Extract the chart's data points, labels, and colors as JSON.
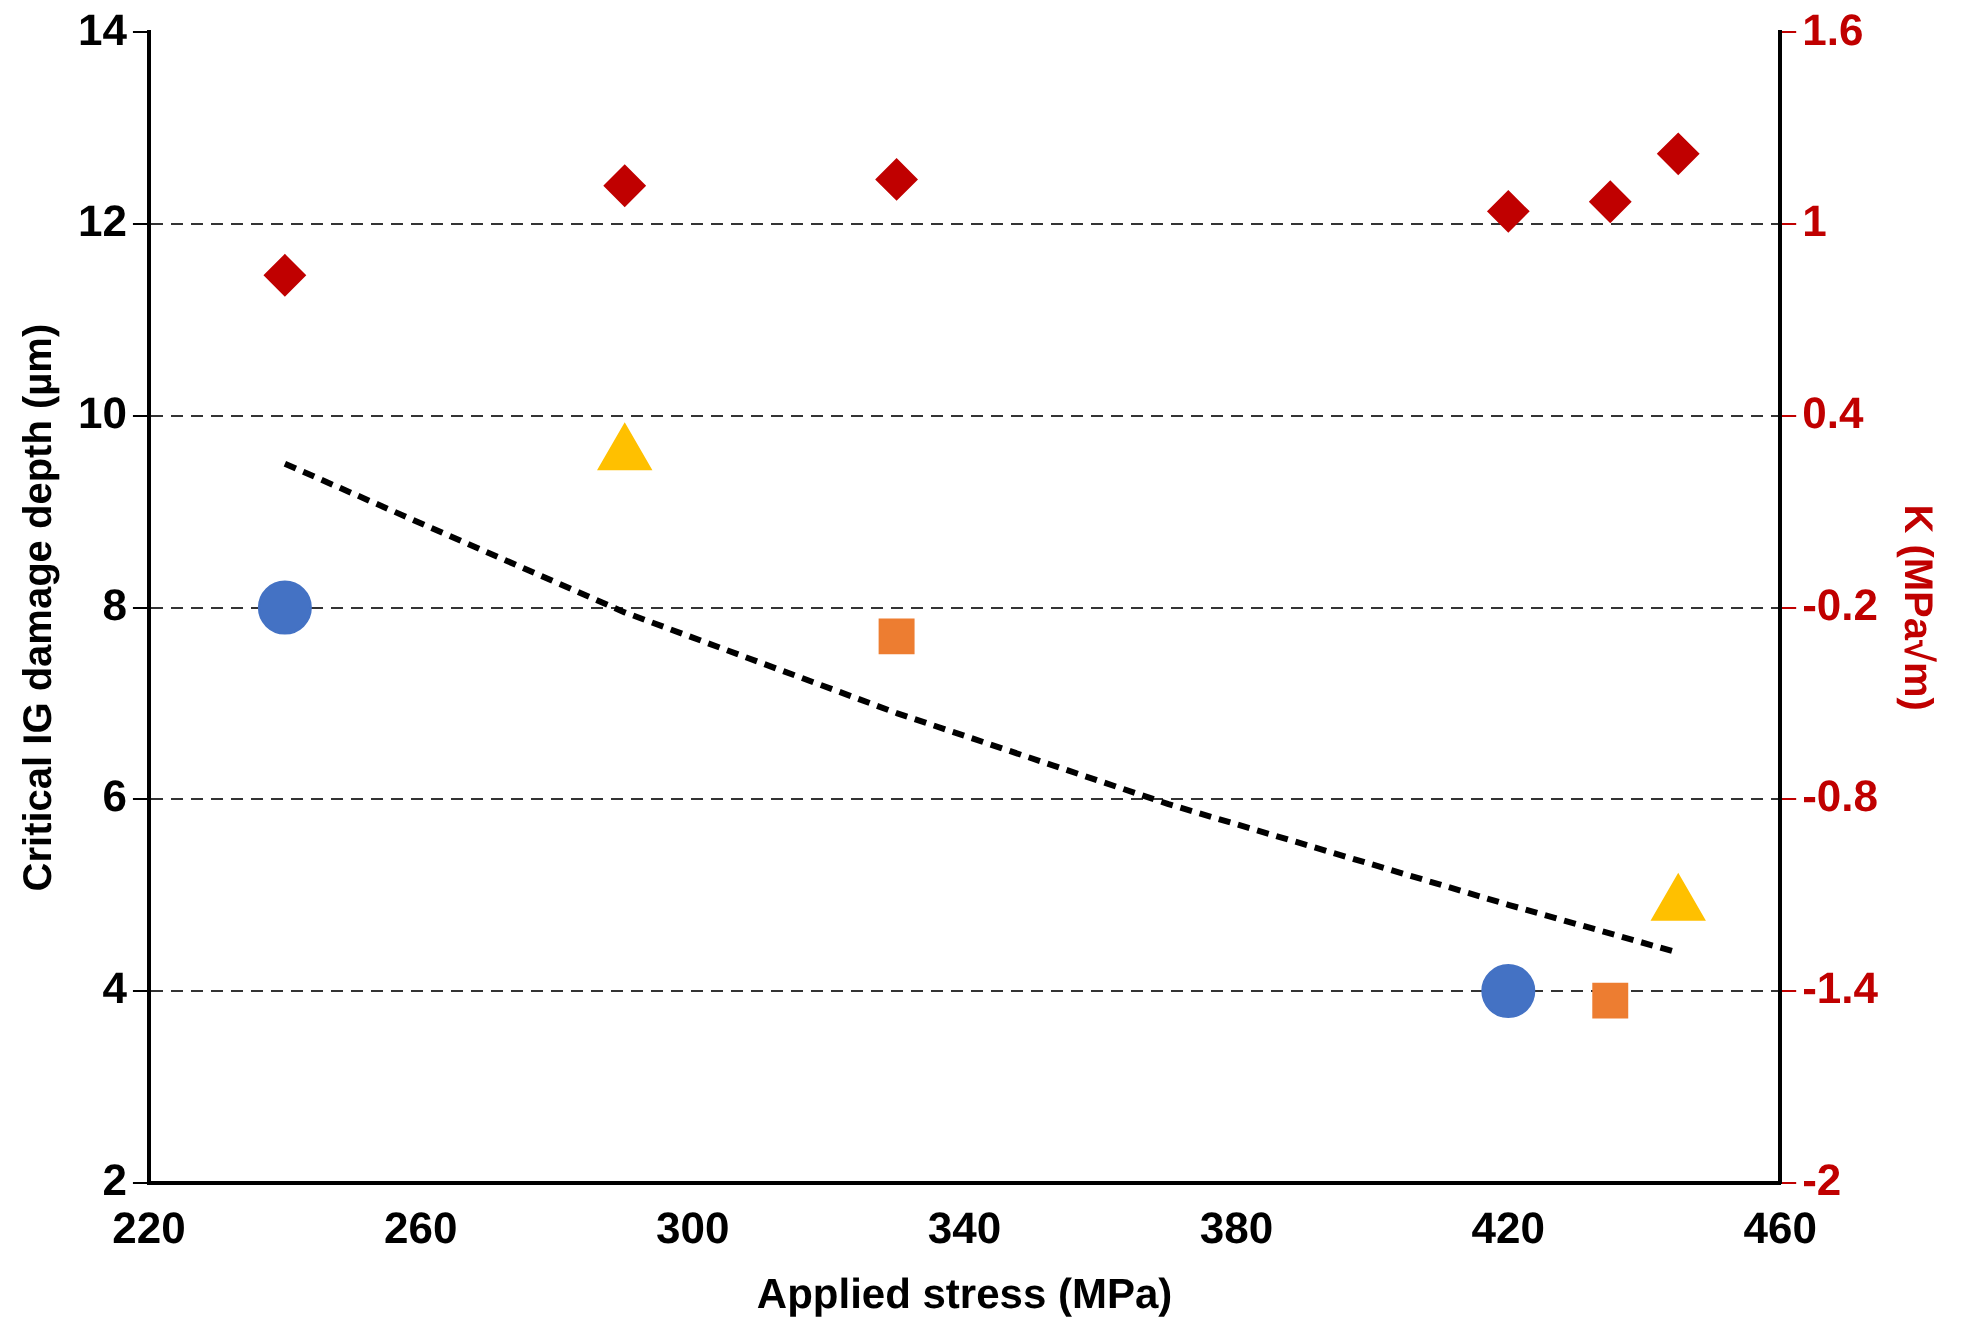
{
  "chart_data": {
    "type": "scatter",
    "xlabel": "Applied stress (MPa)",
    "ylabel": "Critical IG damage depth (µm)",
    "y2label": "K (MPa√m)",
    "xlim": [
      220,
      460
    ],
    "xticks": [
      220,
      260,
      300,
      340,
      380,
      420,
      460
    ],
    "ylim": [
      2,
      14
    ],
    "yticks": [
      2,
      4,
      6,
      8,
      10,
      12,
      14
    ],
    "y2lim": [
      -2,
      1.6
    ],
    "y2ticks": [
      -2,
      -1.4,
      -0.8,
      -0.2,
      0.4,
      1,
      1.6
    ],
    "grid": "y",
    "legend": false,
    "series": [
      {
        "type": "line",
        "color": "#000000",
        "marker": "none",
        "line_style": "dashed",
        "x": [
          240,
          290,
          330,
          370,
          420,
          445
        ],
        "values": [
          9.5,
          7.95,
          6.9,
          5.95,
          4.9,
          4.4
        ]
      },
      {
        "color": "#4472c4",
        "marker": "circle",
        "x": [
          240
        ],
        "values": [
          8
        ]
      },
      {
        "color": "#ffc000",
        "marker": "triangle",
        "x": [
          290
        ],
        "values": [
          9.6
        ]
      },
      {
        "color": "#ed7d31",
        "marker": "square",
        "x": [
          330
        ],
        "values": [
          7.7
        ]
      },
      {
        "color": "#4472c4",
        "marker": "circle",
        "x": [
          420
        ],
        "values": [
          4
        ]
      },
      {
        "color": "#ed7d31",
        "marker": "square",
        "x": [
          435
        ],
        "values": [
          3.9
        ]
      },
      {
        "color": "#ffc000",
        "marker": "triangle",
        "x": [
          445
        ],
        "values": [
          4.9
        ]
      },
      {
        "color": "#c00000",
        "marker": "diamond",
        "axis": "y2",
        "x": [
          240,
          290,
          330,
          420,
          435,
          445
        ],
        "values": [
          0.84,
          1.12,
          1.14,
          1.04,
          1.07,
          1.22
        ]
      }
    ]
  }
}
